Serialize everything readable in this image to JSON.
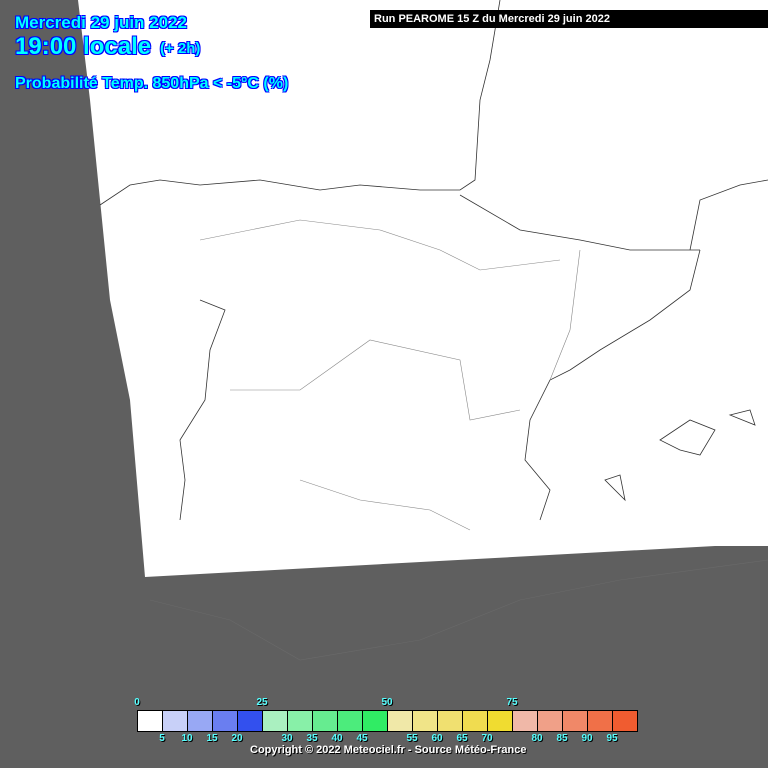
{
  "header": {
    "date": "Mercredi 29 juin 2022",
    "time": "19:00 locale",
    "offset": "(+ 2h)",
    "parameter": "Probabilité Temp. 850hPa < -5°C (%)",
    "run": "Run PEAROME 15 Z du Mercredi 29 juin 2022"
  },
  "legend": {
    "colors": [
      "#ffffff",
      "#c8d0f8",
      "#98a8f4",
      "#6a7ef0",
      "#3350ee",
      "#aaf0c0",
      "#88f0a8",
      "#66ec90",
      "#4cec7c",
      "#30ec64",
      "#f0e8a8",
      "#f0e488",
      "#f0e070",
      "#f0dc50",
      "#f0dc30",
      "#f0b8a8",
      "#f0a088",
      "#f08868",
      "#f07048",
      "#f05c30"
    ],
    "top_labels": [
      "0",
      "25",
      "50",
      "75"
    ],
    "bottom_labels": [
      "5",
      "10",
      "15",
      "20",
      "30",
      "35",
      "40",
      "45",
      "55",
      "60",
      "65",
      "70",
      "80",
      "85",
      "90",
      "95"
    ]
  },
  "copyright": "Copyright © 2022 Meteociel.fr - Source Météo-France"
}
